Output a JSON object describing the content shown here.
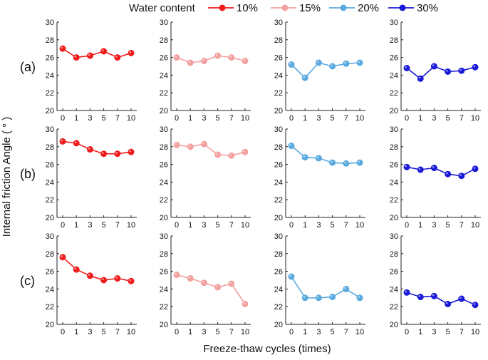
{
  "chart_data": {
    "type": "line",
    "grid": false,
    "legend": {
      "title": "Water content",
      "placement": "top",
      "entries": [
        {
          "label": "10%",
          "color": "#ee1c1c"
        },
        {
          "label": "15%",
          "color": "#f4a0a0"
        },
        {
          "label": "20%",
          "color": "#5aaae0"
        },
        {
          "label": "30%",
          "color": "#1a1ad8"
        }
      ]
    },
    "xlabel": "Freeze-thaw cycles (times)",
    "ylabel": "Internal friction Angle ( ° )",
    "categories": [
      "0",
      "1",
      "3",
      "5",
      "7",
      "10"
    ],
    "yticks": [
      "20",
      "22",
      "24",
      "26",
      "28",
      "30"
    ],
    "ylim": [
      20,
      30
    ],
    "rows": [
      {
        "label": "(a)",
        "series": [
          {
            "name": "10%",
            "values": [
              27.0,
              26.0,
              26.2,
              26.7,
              26.0,
              26.5
            ]
          },
          {
            "name": "15%",
            "values": [
              26.0,
              25.4,
              25.6,
              26.2,
              26.0,
              25.6
            ]
          },
          {
            "name": "20%",
            "values": [
              25.2,
              23.7,
              25.4,
              25.0,
              25.3,
              25.4
            ]
          },
          {
            "name": "30%",
            "values": [
              24.8,
              23.6,
              25.0,
              24.4,
              24.5,
              24.9
            ]
          }
        ]
      },
      {
        "label": "(b)",
        "series": [
          {
            "name": "10%",
            "values": [
              28.6,
              28.4,
              27.7,
              27.2,
              27.2,
              27.4
            ]
          },
          {
            "name": "15%",
            "values": [
              28.2,
              28.0,
              28.3,
              27.1,
              27.0,
              27.4
            ]
          },
          {
            "name": "20%",
            "values": [
              28.1,
              26.8,
              26.7,
              26.2,
              26.1,
              26.2
            ]
          },
          {
            "name": "30%",
            "values": [
              25.7,
              25.4,
              25.6,
              24.9,
              24.7,
              25.5
            ]
          }
        ]
      },
      {
        "label": "(c)",
        "series": [
          {
            "name": "10%",
            "values": [
              27.6,
              26.2,
              25.5,
              25.0,
              25.2,
              24.9
            ]
          },
          {
            "name": "15%",
            "values": [
              25.6,
              25.2,
              24.7,
              24.2,
              24.6,
              22.3
            ]
          },
          {
            "name": "20%",
            "values": [
              25.4,
              23.0,
              23.0,
              23.1,
              24.0,
              23.0
            ]
          },
          {
            "name": "30%",
            "values": [
              23.6,
              23.1,
              23.2,
              22.3,
              22.9,
              22.2
            ]
          }
        ]
      }
    ]
  }
}
